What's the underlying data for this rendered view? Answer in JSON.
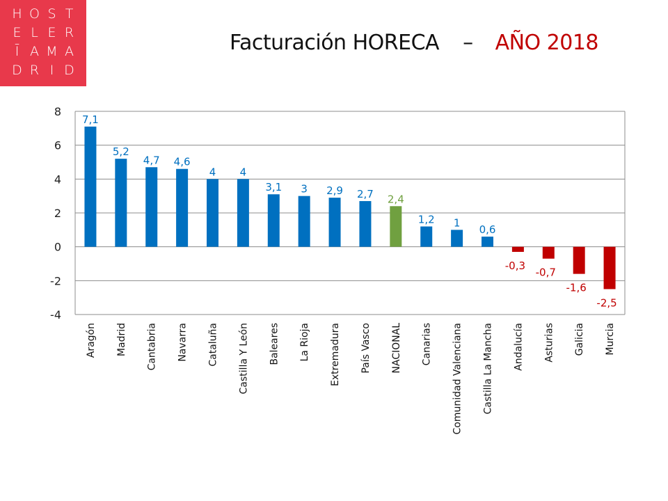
{
  "logo": {
    "letters": [
      "H",
      "O",
      "S",
      "T",
      "E",
      "L",
      "E",
      "R",
      "Ī",
      "A",
      "M",
      "A",
      "D",
      "R",
      "I",
      "D"
    ]
  },
  "title": {
    "main": "Facturación HORECA",
    "dash": "–",
    "year": "AÑO 2018"
  },
  "colors": {
    "positive": "#0070c0",
    "national": "#70a040",
    "negative": "#c00000",
    "logo_bg": "#e8394b"
  },
  "chart_data": {
    "type": "bar",
    "title": "Facturación HORECA – AÑO 2018",
    "categories": [
      "Aragón",
      "Madrid",
      "Cantabria",
      "Navarra",
      "Cataluña",
      "Castilla Y León",
      "Baleares",
      "La Rioja",
      "Extremadura",
      "País Vasco",
      "NACIONAL",
      "Canarias",
      "Comunidad Valenciana",
      "Castilla La Mancha",
      "Andalucía",
      "Asturias",
      "Galicia",
      "Murcia"
    ],
    "values": [
      7.1,
      5.2,
      4.7,
      4.6,
      4.0,
      4.0,
      3.1,
      3.0,
      2.9,
      2.7,
      2.4,
      1.2,
      1.0,
      0.6,
      -0.3,
      -0.7,
      -1.6,
      -2.5
    ],
    "labels": [
      "7,1",
      "5,2",
      "4,7",
      "4,6",
      "4",
      "4",
      "3,1",
      "3",
      "2,9",
      "2,7",
      "2,4",
      "1,2",
      "1",
      "0,6",
      "-0,3",
      "-0,7",
      "-1,6",
      "-2,5"
    ],
    "yticks": [
      "8",
      "6",
      "4",
      "2",
      "0",
      "-2",
      "-4"
    ],
    "ylim": [
      -4,
      8
    ],
    "grid": true,
    "legend": "none",
    "highlight_category": "NACIONAL"
  }
}
